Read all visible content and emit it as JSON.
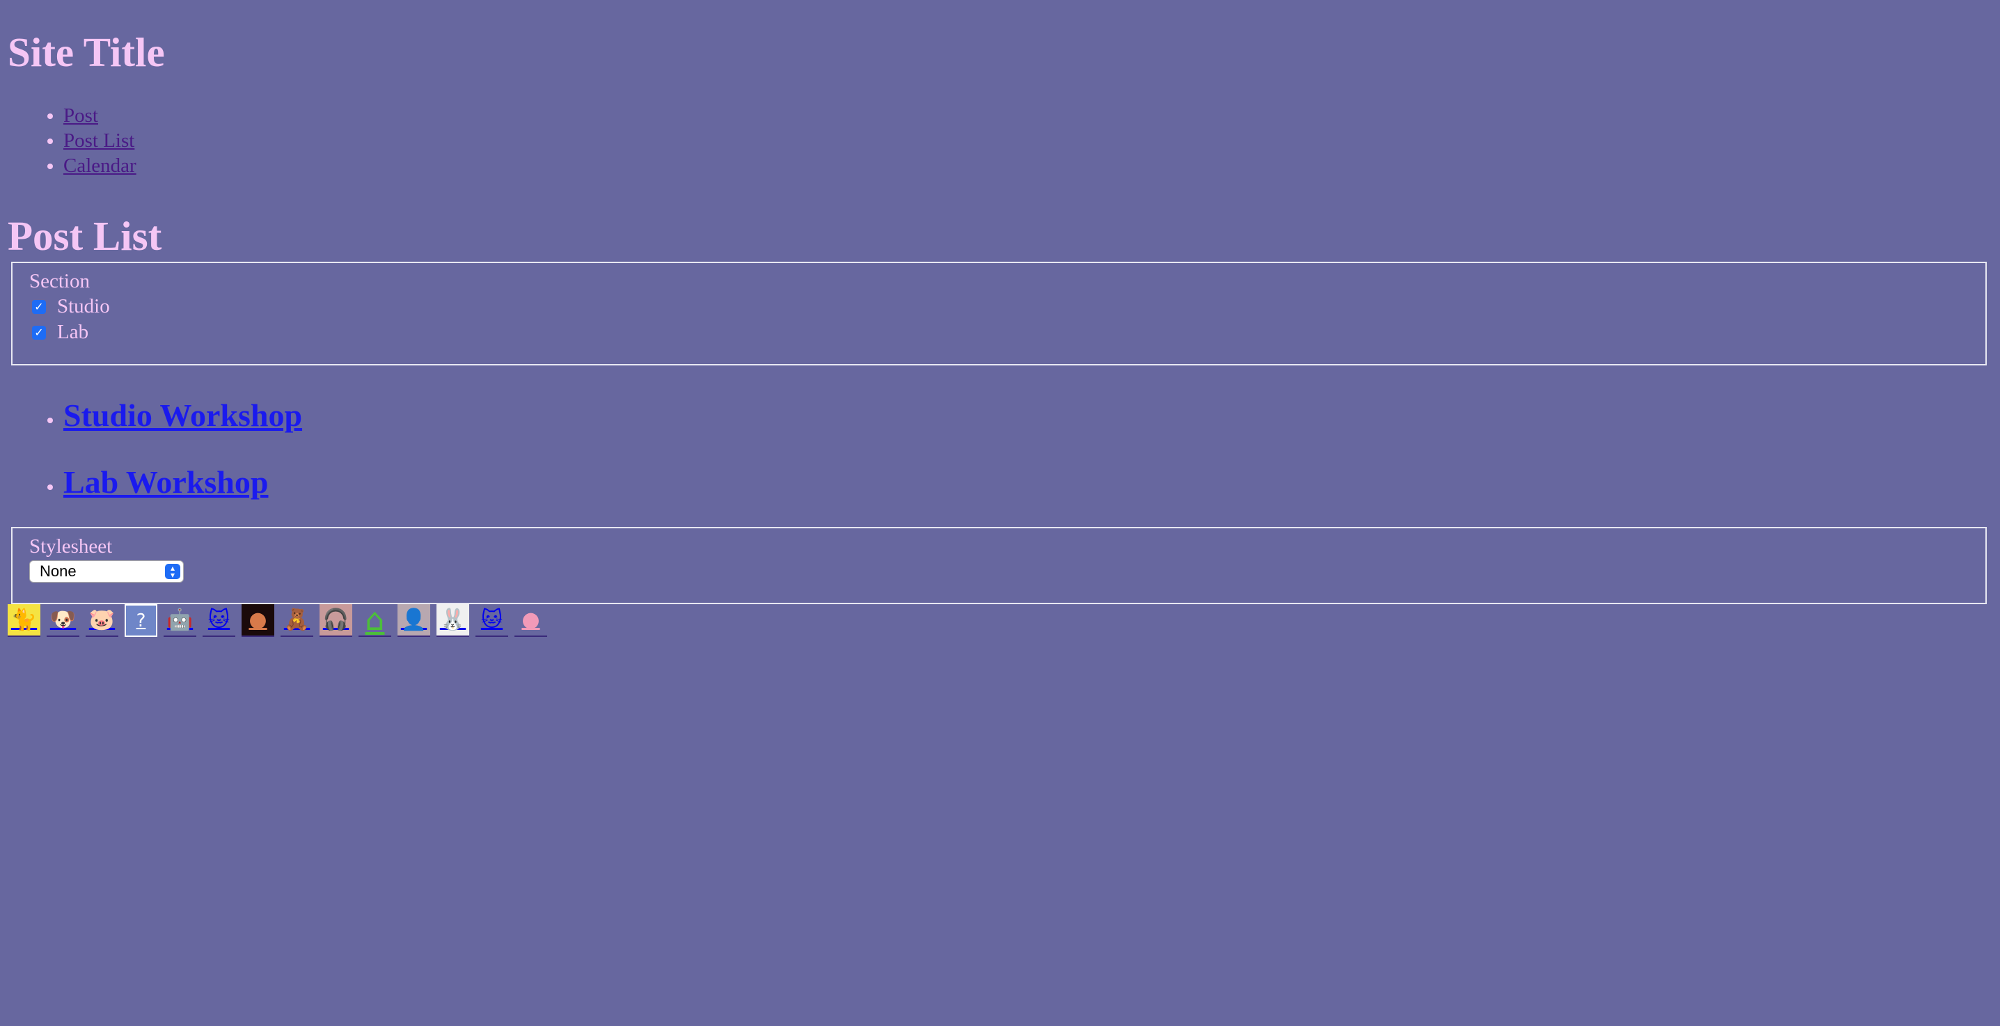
{
  "site": {
    "title": "Site Title"
  },
  "nav": {
    "items": [
      "Post",
      "Post List",
      "Calendar"
    ]
  },
  "page": {
    "title": "Post List"
  },
  "filters": {
    "legend": "Section",
    "options": [
      {
        "label": "Studio",
        "checked": true
      },
      {
        "label": "Lab",
        "checked": true
      }
    ]
  },
  "posts": [
    "Studio Workshop",
    "Lab Workshop"
  ],
  "stylesheet": {
    "legend": "Stylesheet",
    "selected": "None"
  },
  "badges": [
    {
      "icon": "black-cat-icon",
      "glyph": "🐈",
      "bg": "#f5e342"
    },
    {
      "icon": "puppy-icon",
      "glyph": "🐶",
      "bg": "#67679f"
    },
    {
      "icon": "pig-icon",
      "glyph": "🐷",
      "bg": "#67679f"
    },
    {
      "icon": "question-box-icon",
      "glyph": "?",
      "bg": "#6f86c8"
    },
    {
      "icon": "robot-cat-icon",
      "glyph": "🤖",
      "bg": "#67679f"
    },
    {
      "icon": "white-cat-icon",
      "glyph": "🐱",
      "bg": "#67679f"
    },
    {
      "icon": "dark-face-icon",
      "glyph": "●",
      "bg": "#1a0a0a"
    },
    {
      "icon": "figure-icon",
      "glyph": "🧸",
      "bg": "#67679f"
    },
    {
      "icon": "headphones-icon",
      "glyph": "🎧",
      "bg": "#c89a9a"
    },
    {
      "icon": "green-house-icon",
      "glyph": "⌂",
      "bg": "#67679f"
    },
    {
      "icon": "portrait-icon",
      "glyph": "👤",
      "bg": "#b8a8b0"
    },
    {
      "icon": "pink-bunny-icon",
      "glyph": "🐰",
      "bg": "#f0f0f0"
    },
    {
      "icon": "white-cat-icon",
      "glyph": "🐱",
      "bg": "#67679f"
    },
    {
      "icon": "pink-puff-icon",
      "glyph": "●",
      "bg": "#67679f"
    }
  ]
}
